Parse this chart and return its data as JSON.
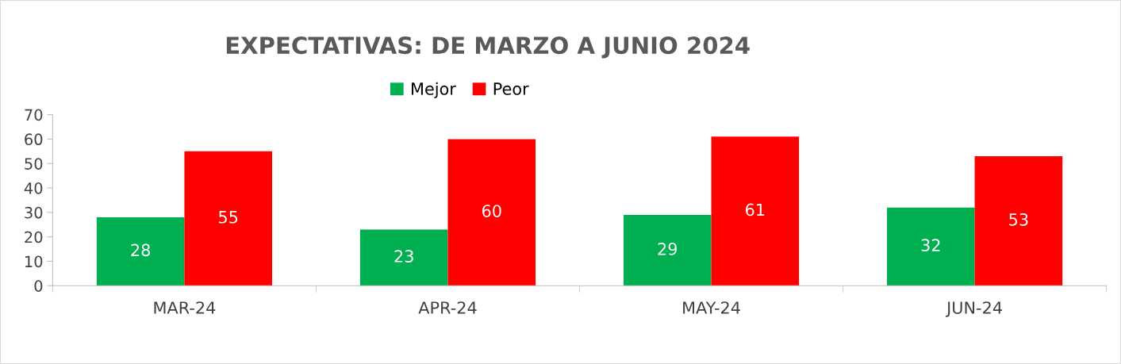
{
  "chart_data": {
    "type": "bar",
    "title": "EXPECTATIVAS: DE MARZO A JUNIO 2024",
    "categories": [
      "MAR-24",
      "APR-24",
      "MAY-24",
      "JUN-24"
    ],
    "series": [
      {
        "name": "Mejor",
        "color": "#00b050",
        "values": [
          28,
          23,
          29,
          32
        ]
      },
      {
        "name": "Peor",
        "color": "#ff0000",
        "values": [
          55,
          60,
          61,
          53
        ]
      }
    ],
    "ylim": [
      0,
      70
    ],
    "yticks": [
      0,
      10,
      20,
      30,
      40,
      50,
      60,
      70
    ],
    "data_labels": true,
    "legend": "top",
    "grid": false
  }
}
